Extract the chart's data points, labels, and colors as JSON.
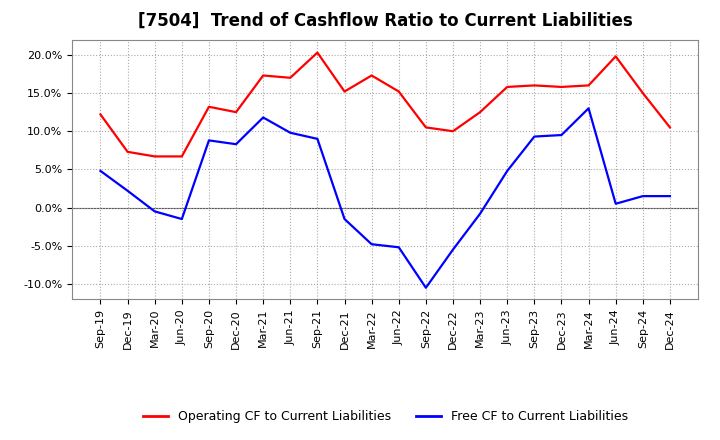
{
  "title": "[7504]  Trend of Cashflow Ratio to Current Liabilities",
  "x_labels": [
    "Sep-19",
    "Dec-19",
    "Mar-20",
    "Jun-20",
    "Sep-20",
    "Dec-20",
    "Mar-21",
    "Jun-21",
    "Sep-21",
    "Dec-21",
    "Mar-22",
    "Jun-22",
    "Sep-22",
    "Dec-22",
    "Mar-23",
    "Jun-23",
    "Sep-23",
    "Dec-23",
    "Mar-24",
    "Jun-24",
    "Sep-24",
    "Dec-24"
  ],
  "operating_cf": [
    12.2,
    7.3,
    6.7,
    6.7,
    13.2,
    12.5,
    17.3,
    17.0,
    20.3,
    15.2,
    17.3,
    15.2,
    10.5,
    10.0,
    12.5,
    15.8,
    16.0,
    15.8,
    16.0,
    19.8,
    15.0,
    10.5
  ],
  "free_cf": [
    4.8,
    2.2,
    -0.5,
    -1.5,
    8.8,
    8.3,
    11.8,
    9.8,
    9.0,
    -1.5,
    -4.8,
    -5.2,
    -10.5,
    -5.5,
    -0.8,
    4.8,
    9.3,
    9.5,
    13.0,
    0.5,
    1.5,
    1.5
  ],
  "operating_color": "#FF0000",
  "free_color": "#0000FF",
  "ylim": [
    -12,
    22
  ],
  "yticks": [
    -10,
    -5,
    0,
    5,
    10,
    15,
    20
  ],
  "background_color": "#ffffff",
  "grid_color": "#aaaaaa",
  "title_fontsize": 12,
  "axis_fontsize": 8.5,
  "tick_fontsize": 8,
  "legend_labels": [
    "Operating CF to Current Liabilities",
    "Free CF to Current Liabilities"
  ],
  "legend_fontsize": 9
}
